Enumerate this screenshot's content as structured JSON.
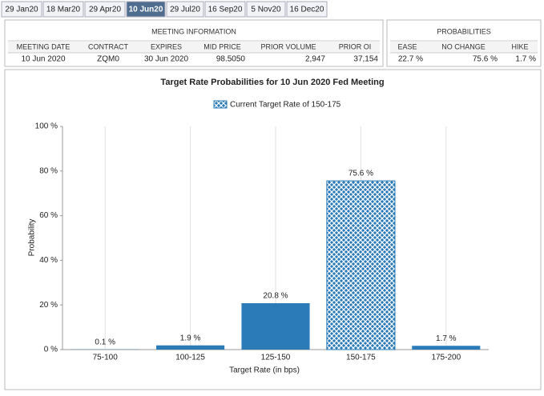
{
  "tabs": [
    "29 Jan20",
    "18 Mar20",
    "29 Apr20",
    "10 Jun20",
    "29 Jul20",
    "16 Sep20",
    "5 Nov20",
    "16 Dec20"
  ],
  "active_tab": 3,
  "meeting_information": {
    "title": "MEETING INFORMATION",
    "columns": [
      "MEETING DATE",
      "CONTRACT",
      "EXPIRES",
      "MID PRICE",
      "PRIOR VOLUME",
      "PRIOR OI"
    ],
    "rows": [
      [
        "10 Jun 2020",
        "ZQM0",
        "30 Jun 2020",
        "98.5050",
        "2,947",
        "37,154"
      ]
    ]
  },
  "probabilities": {
    "title": "PROBABILITIES",
    "columns": [
      "EASE",
      "NO CHANGE",
      "HIKE"
    ],
    "rows": [
      [
        "22.7 %",
        "75.6 %",
        "1.7 %"
      ]
    ]
  },
  "chart_data": {
    "type": "bar",
    "title": "Target Rate Probabilities for 10 Jun 2020 Fed Meeting",
    "x_label": "Target Rate (in bps)",
    "y_label": "Probability",
    "categories": [
      "75-100",
      "100-125",
      "125-150",
      "150-175",
      "175-200"
    ],
    "series": [
      {
        "name": "Current Target Rate of 150-175",
        "color": "#2b7bb9",
        "values": [
          0.1,
          1.9,
          20.8,
          75.6,
          1.7
        ],
        "value_labels": [
          "0.1 %",
          "1.9 %",
          "20.8 %",
          "75.6 %",
          "1.7 %"
        ]
      }
    ],
    "highlight_index": 3,
    "ylim": [
      0,
      100
    ],
    "yticks": [
      {
        "value": 0,
        "label": "0 %"
      },
      {
        "value": 20,
        "label": "20 %"
      },
      {
        "value": 40,
        "label": "40 %"
      },
      {
        "value": 60,
        "label": "60 %"
      },
      {
        "value": 80,
        "label": "80 %"
      },
      {
        "value": 100,
        "label": "100 %"
      }
    ],
    "grid": "x"
  }
}
